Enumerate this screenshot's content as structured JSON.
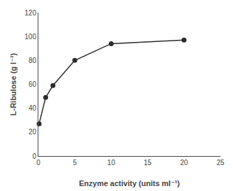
{
  "chart_data": {
    "type": "line",
    "x": [
      0.1,
      1,
      2,
      5,
      10,
      20
    ],
    "values": [
      27,
      49,
      59,
      80,
      94,
      97
    ],
    "xlabel": "Enzyme activity (units ml⁻¹)",
    "ylabel": "L-Ribulose (g l⁻¹)",
    "xlim": [
      0,
      25
    ],
    "ylim": [
      0,
      120
    ],
    "xticks": [
      0,
      5,
      10,
      15,
      20,
      25
    ],
    "yticks": [
      0,
      20,
      40,
      60,
      80,
      100,
      120
    ],
    "color": "#2b2b2b",
    "marker": "circle",
    "grid": false
  }
}
